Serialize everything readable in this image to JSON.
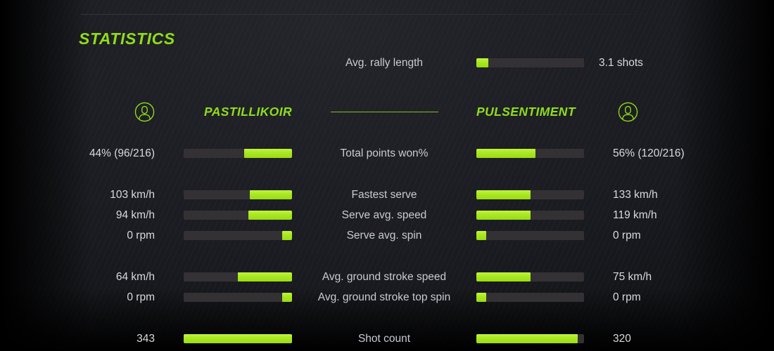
{
  "colors": {
    "accent_text": "#8fdd1a",
    "bar_fill": "#a8e821",
    "bar_track": "#343134",
    "label": "#c7cbd0",
    "value": "#d7dadd"
  },
  "header": {
    "title": "STATISTICS"
  },
  "summary_row": {
    "label": "Avg. rally length",
    "value": "3.1 shots",
    "fill_pct": 11
  },
  "players": {
    "left": {
      "name": "PASTILLIKOIR",
      "avatar_icon": "person-in-circle-icon"
    },
    "right": {
      "name": "PULSENTIMENT",
      "avatar_icon": "person-in-circle-icon"
    }
  },
  "stat_rows": [
    {
      "label": "Total points won%",
      "left_value": "44% (96/216)",
      "left_fill_pct": 44,
      "right_value": "56% (120/216)",
      "right_fill_pct": 55,
      "group_gap": false
    },
    {
      "label": "Fastest serve",
      "left_value": "103 km/h",
      "left_fill_pct": 39,
      "right_value": "133 km/h",
      "right_fill_pct": 50,
      "group_gap": true
    },
    {
      "label": "Serve avg. speed",
      "left_value": "94 km/h",
      "left_fill_pct": 40,
      "right_value": "119 km/h",
      "right_fill_pct": 50,
      "group_gap": false
    },
    {
      "label": "Serve avg. spin",
      "left_value": "0 rpm",
      "left_fill_pct": 9,
      "right_value": "0 rpm",
      "right_fill_pct": 9,
      "group_gap": false
    },
    {
      "label": "Avg. ground stroke speed",
      "left_value": "64 km/h",
      "left_fill_pct": 50,
      "right_value": "75 km/h",
      "right_fill_pct": 50,
      "group_gap": true
    },
    {
      "label": "Avg. ground stroke top spin",
      "left_value": "0 rpm",
      "left_fill_pct": 9,
      "right_value": "0 rpm",
      "right_fill_pct": 9,
      "group_gap": false
    },
    {
      "label": "Shot count",
      "left_value": "343",
      "left_fill_pct": 100,
      "right_value": "320",
      "right_fill_pct": 94,
      "group_gap": true
    }
  ]
}
